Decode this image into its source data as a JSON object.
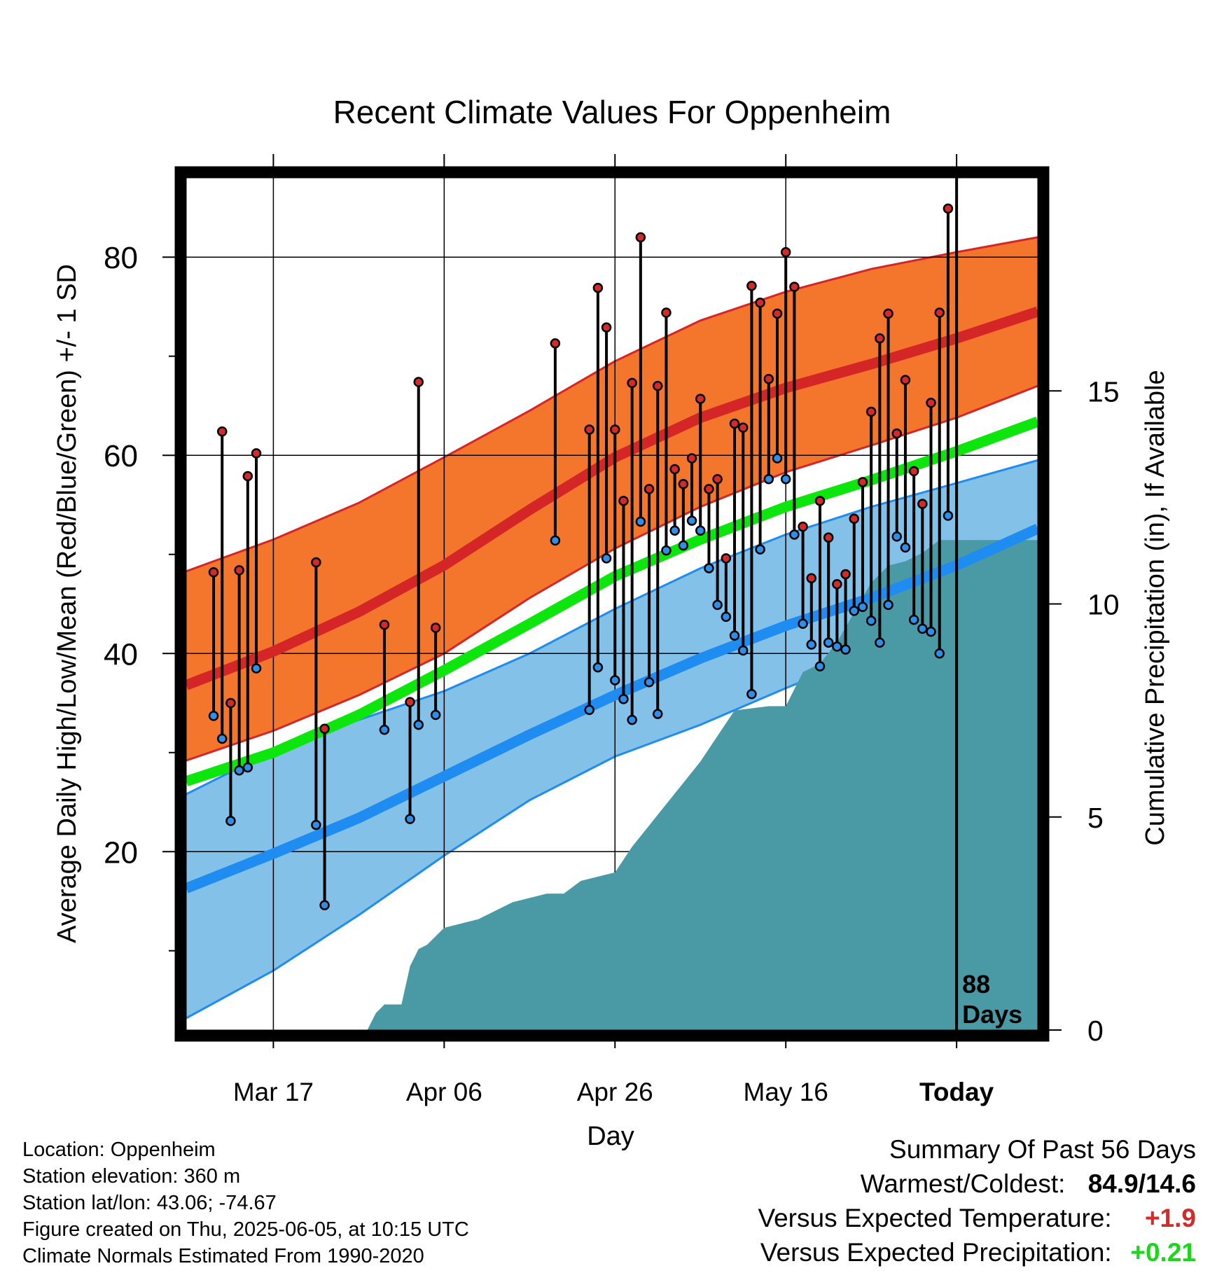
{
  "chart_data": {
    "type": "line",
    "title": "Recent Climate Values For Oppenheim",
    "xlabel": "Day",
    "ylabel_left": "Average Daily High/Low/Mean (Red/Blue/Green) +/- 1 SD",
    "ylabel_right": "Cumulative Precipitation (in), If Available",
    "x_tick_labels": [
      "Mar 17",
      "Apr 06",
      "Apr 26",
      "May 16",
      "Today"
    ],
    "x_tick_days": [
      0,
      20,
      40,
      60,
      80
    ],
    "xlim_days": [
      -10.2,
      89.5
    ],
    "ylim_left": [
      2,
      88
    ],
    "y_ticks_left": [
      20,
      40,
      60,
      80
    ],
    "ylim_right": [
      0,
      20
    ],
    "y_ticks_right": [
      0,
      5,
      10,
      15
    ],
    "today_marker_label": "88 Days",
    "grid": true,
    "colors": {
      "high_band": "#f4762c",
      "high_mean": "#d42626",
      "low_band": "#83c1e8",
      "low_mean": "#1e8cf0",
      "mean_line": "#0de60d",
      "precip": "#4a9aa6",
      "high_dot": "#d42a2a",
      "low_dot": "#2e8ee8"
    },
    "normals": {
      "days": [
        -10.2,
        0,
        10,
        20,
        30,
        40,
        50,
        60,
        70,
        80,
        89.5
      ],
      "high_mean": [
        36.8,
        40.2,
        44.2,
        48.9,
        54.5,
        59.8,
        63.8,
        66.8,
        69.2,
        71.8,
        74.5
      ],
      "high_upper": [
        48.3,
        51.5,
        55.2,
        59.8,
        64.5,
        69.5,
        73.6,
        76.5,
        78.8,
        80.5,
        82.0
      ],
      "high_lower": [
        29.2,
        32.2,
        35.8,
        40.0,
        45.6,
        50.6,
        54.8,
        58.3,
        61.0,
        63.8,
        67.0
      ],
      "low_mean": [
        16.3,
        19.8,
        23.4,
        27.6,
        31.8,
        35.8,
        39.5,
        42.8,
        45.6,
        48.9,
        52.6
      ],
      "low_upper": [
        25.8,
        30.2,
        33.3,
        36.2,
        40.0,
        44.5,
        48.6,
        52.0,
        54.8,
        57.2,
        59.5
      ],
      "low_lower": [
        3.2,
        8.0,
        13.6,
        19.6,
        25.2,
        29.6,
        32.8,
        36.5,
        40.0,
        43.2,
        46.5
      ],
      "daily_mean": [
        27.1,
        30.0,
        33.8,
        38.3,
        43.0,
        47.8,
        51.5,
        54.8,
        57.5,
        60.4,
        63.4
      ]
    },
    "observations": [
      {
        "day": -7,
        "high": 48.2,
        "low": 33.7
      },
      {
        "day": -6,
        "high": 62.4,
        "low": 31.4
      },
      {
        "day": -5,
        "high": 35.0,
        "low": 23.1
      },
      {
        "day": -4,
        "high": 48.4,
        "low": 28.2
      },
      {
        "day": -3,
        "high": 57.9,
        "low": 28.5
      },
      {
        "day": -2,
        "high": 60.2,
        "low": 38.5
      },
      {
        "day": 5,
        "high": 49.2,
        "low": 22.7
      },
      {
        "day": 6,
        "high": 32.4,
        "low": 14.6
      },
      {
        "day": 13,
        "high": 42.9,
        "low": 32.3
      },
      {
        "day": 16,
        "high": 35.1,
        "low": 23.3
      },
      {
        "day": 17,
        "high": 67.4,
        "low": 32.8
      },
      {
        "day": 19,
        "high": 42.6,
        "low": 33.8
      },
      {
        "day": 33,
        "high": 71.3,
        "low": 51.4
      },
      {
        "day": 37,
        "high": 62.6,
        "low": 34.3
      },
      {
        "day": 38,
        "high": 76.9,
        "low": 38.6
      },
      {
        "day": 39,
        "high": 72.9,
        "low": 49.6
      },
      {
        "day": 40,
        "high": 62.6,
        "low": 37.3
      },
      {
        "day": 41,
        "high": 55.4,
        "low": 35.4
      },
      {
        "day": 42,
        "high": 67.3,
        "low": 33.3
      },
      {
        "day": 43,
        "high": 82.0,
        "low": 53.3
      },
      {
        "day": 44,
        "high": 56.6,
        "low": 37.1
      },
      {
        "day": 45,
        "high": 67.0,
        "low": 33.9
      },
      {
        "day": 46,
        "high": 74.4,
        "low": 50.4
      },
      {
        "day": 47,
        "high": 58.6,
        "low": 52.4
      },
      {
        "day": 48,
        "high": 57.1,
        "low": 50.9
      },
      {
        "day": 49,
        "high": 59.7,
        "low": 53.4
      },
      {
        "day": 50,
        "high": 65.7,
        "low": 52.4
      },
      {
        "day": 51,
        "high": 56.6,
        "low": 48.6
      },
      {
        "day": 52,
        "high": 57.6,
        "low": 44.9
      },
      {
        "day": 53,
        "high": 49.6,
        "low": 43.7
      },
      {
        "day": 54,
        "high": 63.2,
        "low": 41.8
      },
      {
        "day": 55,
        "high": 62.8,
        "low": 40.3
      },
      {
        "day": 56,
        "high": 77.1,
        "low": 35.9
      },
      {
        "day": 57,
        "high": 75.4,
        "low": 50.5
      },
      {
        "day": 58,
        "high": 67.7,
        "low": 57.6
      },
      {
        "day": 59,
        "high": 74.3,
        "low": 59.7
      },
      {
        "day": 60,
        "high": 80.5,
        "low": 57.6
      },
      {
        "day": 61,
        "high": 77.0,
        "low": 52.0
      },
      {
        "day": 62,
        "high": 52.8,
        "low": 43.0
      },
      {
        "day": 63,
        "high": 47.6,
        "low": 40.9
      },
      {
        "day": 64,
        "high": 55.4,
        "low": 38.7
      },
      {
        "day": 65,
        "high": 51.7,
        "low": 41.1
      },
      {
        "day": 66,
        "high": 47.0,
        "low": 40.7
      },
      {
        "day": 67,
        "high": 48.0,
        "low": 40.4
      },
      {
        "day": 68,
        "high": 53.6,
        "low": 44.3
      },
      {
        "day": 69,
        "high": 57.3,
        "low": 44.7
      },
      {
        "day": 70,
        "high": 64.4,
        "low": 43.3
      },
      {
        "day": 71,
        "high": 71.8,
        "low": 41.1
      },
      {
        "day": 72,
        "high": 74.3,
        "low": 44.9
      },
      {
        "day": 73,
        "high": 62.2,
        "low": 51.8
      },
      {
        "day": 74,
        "high": 67.6,
        "low": 50.7
      },
      {
        "day": 75,
        "high": 58.4,
        "low": 43.4
      },
      {
        "day": 76,
        "high": 55.1,
        "low": 42.5
      },
      {
        "day": 77,
        "high": 65.3,
        "low": 42.2
      },
      {
        "day": 78,
        "high": 74.4,
        "low": 40.0
      },
      {
        "day": 79,
        "high": 84.9,
        "low": 53.9
      }
    ],
    "precipitation": {
      "days": [
        -10.2,
        11,
        12,
        13,
        14,
        15,
        16,
        17,
        18,
        19,
        20,
        22,
        24,
        26,
        28,
        30,
        32,
        34,
        36,
        40,
        42,
        44,
        46,
        48,
        50,
        52,
        54,
        58,
        60,
        62,
        64,
        66,
        68,
        70,
        72,
        74,
        76,
        78,
        80,
        89.5
      ],
      "values": [
        0,
        0,
        0.4,
        0.6,
        0.6,
        0.6,
        1.5,
        1.9,
        2.0,
        2.2,
        2.4,
        2.5,
        2.6,
        2.8,
        3.0,
        3.1,
        3.2,
        3.2,
        3.5,
        3.7,
        4.3,
        4.8,
        5.3,
        5.8,
        6.3,
        6.9,
        7.5,
        7.6,
        7.6,
        8.4,
        8.6,
        9.1,
        9.8,
        10.5,
        10.9,
        11.0,
        11.2,
        11.5,
        11.5,
        11.5
      ]
    }
  },
  "info": {
    "location": "Location: Oppenheim",
    "elevation": "Station elevation: 360 m",
    "latlon": "Station lat/lon: 43.06; -74.67",
    "created": "Figure created on Thu, 2025-06-05, at 10:15 UTC",
    "normals": "Climate Normals Estimated From 1990-2020"
  },
  "summary": {
    "title": "Summary Of Past 56 Days",
    "warmest_coldest_label": "Warmest/Coldest:",
    "warmest_coldest_value": "84.9/14.6",
    "temp_label": "Versus Expected Temperature:",
    "temp_value": "+1.9",
    "precip_label": "Versus Expected Precipitation:",
    "precip_value": "+0.21"
  }
}
